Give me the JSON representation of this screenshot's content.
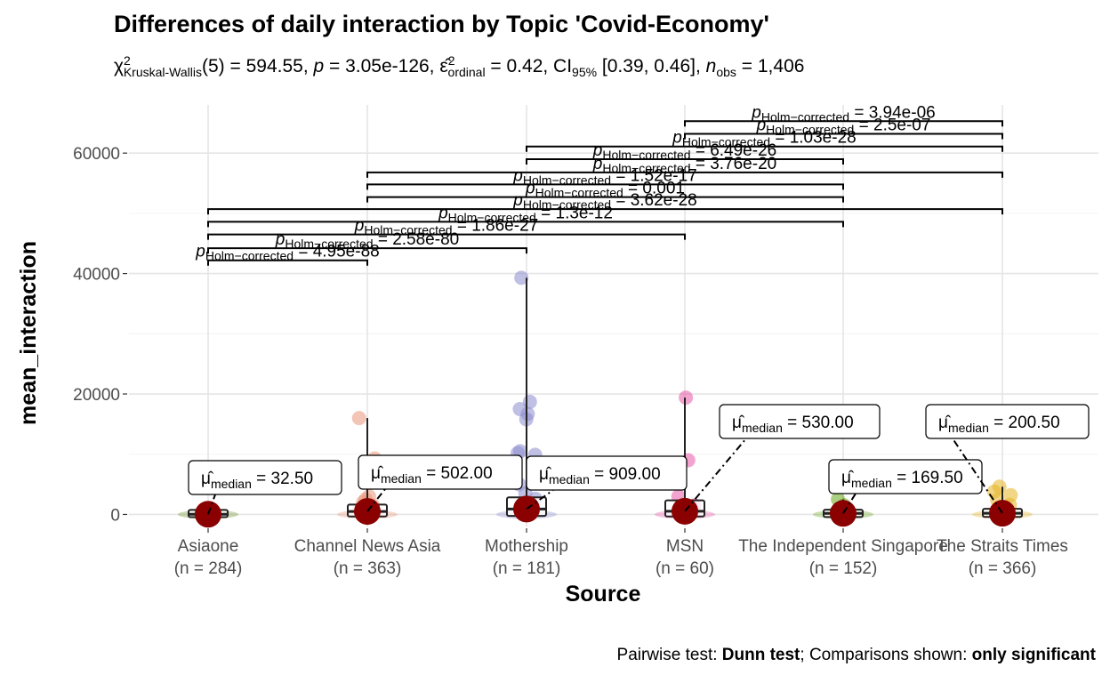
{
  "chart_data": {
    "type": "box-violin-scatter",
    "title": "Differences of daily interaction by Topic 'Covid-Economy'",
    "subtitle": {
      "stat": "χ",
      "stat_sup": "2",
      "stat_sub": "Kruskal-Wallis",
      "df_text": "(5) = 594.55, ",
      "p_sym": "p",
      "p_text": " = 3.05e-126, ",
      "eps_sym": "ε̂",
      "eps_sup": "2",
      "eps_sub": "ordinal",
      "eps_text": " = 0.42, CI",
      "ci_sub": "95%",
      "ci_text": " [0.39, 0.46], ",
      "n_sym": "n",
      "n_sub": "obs",
      "n_text": " = 1,406"
    },
    "xlabel": "Source",
    "ylabel": "mean_interaction",
    "ylim": [
      -2000,
      68000
    ],
    "yticks": [
      0,
      20000,
      40000,
      60000
    ],
    "ytick_labels": [
      "0",
      "20000",
      "40000",
      "60000"
    ],
    "grid": true,
    "categories": [
      {
        "name": "Asiaone",
        "n_label": "(n = 284)",
        "median_label": "32.50",
        "color": "#6b8e23",
        "points": [
          0,
          50,
          120,
          200,
          400,
          800
        ],
        "whisker_max": 1500,
        "box": [
          0,
          30,
          300
        ]
      },
      {
        "name": "Channel News Asia",
        "n_label": "(n = 363)",
        "median_label": "502.00",
        "color": "#e9967a",
        "points": [
          16000,
          9300,
          3000,
          2500,
          2000,
          1500,
          1200,
          800,
          400
        ],
        "whisker_max": 16000,
        "box": [
          100,
          500,
          1200
        ]
      },
      {
        "name": "Mothership",
        "n_label": "(n = 181)",
        "median_label": "909.00",
        "color": "#8c8cd0",
        "points": [
          39300,
          18700,
          17500,
          16700,
          15800,
          10500,
          10200,
          9900,
          7200,
          5000,
          3500,
          2600,
          1500,
          800
        ],
        "whisker_max": 39300,
        "box": [
          200,
          900,
          2400
        ]
      },
      {
        "name": "MSN",
        "n_label": "(n = 60)",
        "median_label": "530.00",
        "color": "#e75aa8",
        "points": [
          19400,
          9000,
          8500,
          3000,
          1500,
          800
        ],
        "whisker_max": 19400,
        "box": [
          100,
          530,
          1900
        ]
      },
      {
        "name": "The Independent Singapore",
        "n_label": "(n = 152)",
        "median_label": "169.50",
        "color": "#66a61e",
        "points": [
          2500,
          1500,
          800,
          400,
          200,
          100
        ],
        "whisker_max": 2500,
        "box": [
          20,
          170,
          350
        ]
      },
      {
        "name": "The Straits Times",
        "n_label": "(n = 366)",
        "median_label": "200.50",
        "color": "#e6b422",
        "points": [
          4600,
          3800,
          3200,
          2400,
          1600,
          900,
          400
        ],
        "whisker_max": 4600,
        "box": [
          30,
          200,
          500
        ]
      }
    ],
    "median_symbol": "μ̂",
    "median_sub": "median",
    "comparisons": [
      {
        "from": 0,
        "to": 1,
        "y": 42200,
        "p_label": "4.95e-88"
      },
      {
        "from": 0,
        "to": 2,
        "y": 44200,
        "p_label": "2.58e-80"
      },
      {
        "from": 0,
        "to": 3,
        "y": 46500,
        "p_label": "1.86e-27"
      },
      {
        "from": 0,
        "to": 4,
        "y": 48600,
        "p_label": "1.3e-12"
      },
      {
        "from": 0,
        "to": 5,
        "y": 50700,
        "p_label": "3.62e-28"
      },
      {
        "from": 1,
        "to": 4,
        "y": 52700,
        "p_label": "0.001"
      },
      {
        "from": 1,
        "to": 4,
        "y": 54800,
        "p_label": "1.52e-17"
      },
      {
        "from": 1,
        "to": 5,
        "y": 56800,
        "p_label": "3.76e-20"
      },
      {
        "from": 2,
        "to": 4,
        "y": 59000,
        "p_label": "6.49e-26"
      },
      {
        "from": 2,
        "to": 5,
        "y": 61100,
        "p_label": "1.03e-28"
      },
      {
        "from": 3,
        "to": 5,
        "y": 63200,
        "p_label": "2.5e-07"
      },
      {
        "from": 3,
        "to": 5,
        "y": 65300,
        "p_label": "3.94e-06"
      }
    ],
    "p_symbol": "p",
    "p_sub": "Holm−corrected",
    "caption": {
      "prefix": "Pairwise test: ",
      "test": "Dunn test",
      "middle": "; Comparisons shown: ",
      "shown": "only significant"
    }
  }
}
